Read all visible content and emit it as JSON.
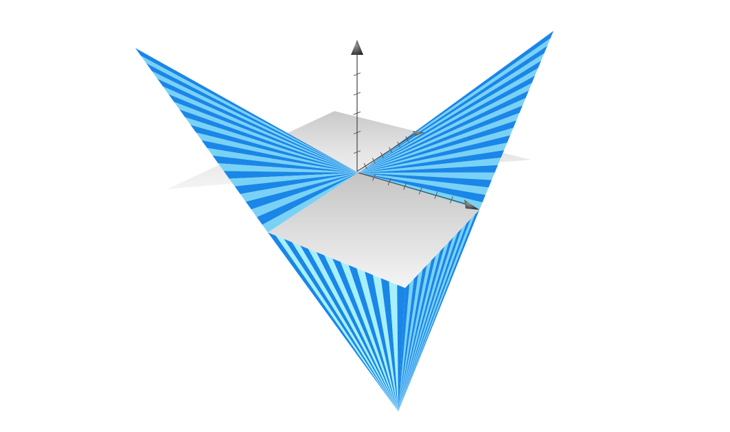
{
  "scene": {
    "surface_description_visible": false,
    "colors": {
      "background": "#ffffff",
      "stripe_dark": "#1a86e8",
      "stripe_light": "#79d2f5",
      "stripe_light_highlight": "#a6f0fb",
      "plane_light": "#f2f2f2",
      "plane_dark": "#c8c8c8",
      "axis": "#444444",
      "arrow_head": "#3a3a3a"
    },
    "axes": {
      "x": {
        "arrow": "cone-arrow-icon",
        "ticks": 6
      },
      "y": {
        "arrow": "cone-arrow-icon",
        "ticks": 6
      },
      "z": {
        "arrow": "cone-arrow-icon",
        "ticks": 5
      }
    },
    "stripes_per_panel": 24
  }
}
